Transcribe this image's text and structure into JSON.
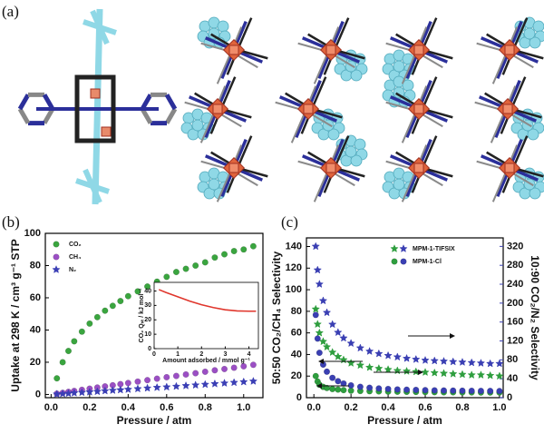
{
  "panels": [
    "(a)",
    "(b)",
    "(c)"
  ],
  "chart_data": [
    {
      "type": "scatter",
      "xlabel": "Pressure / atm",
      "ylabel": "Uptake at 298 K / cm³ g⁻¹ STP",
      "xlim": [
        -0.03,
        1.1
      ],
      "ylim": [
        -2,
        100
      ],
      "xticks": [
        {
          "value": 0,
          "label": "0.0"
        },
        0.2,
        0.4,
        0.6,
        0.8,
        {
          "value": 1,
          "label": "1.0"
        }
      ],
      "yticks": [
        0,
        20,
        40,
        60,
        80,
        100
      ],
      "legend": "upper left",
      "x": [
        0.03,
        0.06,
        0.09,
        0.12,
        0.16,
        0.2,
        0.24,
        0.28,
        0.32,
        0.36,
        0.4,
        0.45,
        0.5,
        0.55,
        0.6,
        0.65,
        0.7,
        0.75,
        0.8,
        0.85,
        0.9,
        0.95,
        1.0,
        1.05
      ],
      "series": [
        {
          "name": "CO₂",
          "color": "#3aa53f",
          "marker": "circle",
          "values": [
            10,
            20,
            27,
            33,
            39,
            44,
            48,
            52,
            55,
            58,
            61,
            64,
            67,
            70,
            73,
            76,
            78,
            80,
            82,
            85,
            87,
            89,
            90,
            92
          ]
        },
        {
          "name": "CH₄",
          "color": "#9b4fc4",
          "marker": "circle",
          "values": [
            0.5,
            1,
            1.6,
            2.2,
            2.9,
            3.6,
            4.3,
            5,
            5.7,
            6.4,
            7.1,
            8,
            8.9,
            9.8,
            10.7,
            11.5,
            12.4,
            13.2,
            14.1,
            15,
            15.8,
            16.6,
            17.5,
            18.4
          ]
        },
        {
          "name": "N₂",
          "color": "#3b3fb5",
          "marker": "star",
          "values": [
            0.2,
            0.4,
            0.6,
            0.9,
            1.2,
            1.5,
            1.8,
            2.2,
            2.5,
            2.8,
            3.1,
            3.5,
            3.9,
            4.3,
            4.6,
            5,
            5.4,
            5.8,
            6.2,
            6.6,
            7,
            7.4,
            7.8,
            8.2
          ]
        }
      ]
    },
    {
      "type": "line",
      "xlabel": "Amount adsorbed / mmol g⁻¹",
      "ylabel": "CO₂ Qₛₜ / kJ mol⁻¹",
      "xlim": [
        0,
        4.4
      ],
      "ylim": [
        0,
        46
      ],
      "xticks": [
        0,
        1,
        2,
        3,
        4
      ],
      "yticks": [
        0,
        10,
        20,
        30,
        40
      ],
      "x": [
        0.2,
        0.5,
        1,
        1.5,
        2,
        2.5,
        3,
        3.5,
        4,
        4.3
      ],
      "series": [
        {
          "color": "#e0362c",
          "values": [
            41,
            39,
            36,
            33,
            30.5,
            28.5,
            27,
            26.2,
            26,
            26
          ]
        }
      ]
    },
    {
      "type": "scatter",
      "xlabel": "Pressure / atm",
      "ylabel": "50:50 CO₂/CH₄ Selectivity",
      "y2label": "10:90 CO₂/N₂ Selectivity",
      "xlim": [
        -0.04,
        1.02
      ],
      "ylim": [
        0,
        148
      ],
      "y2lim": [
        0,
        338
      ],
      "xticks": [
        {
          "value": 0,
          "label": "0.0"
        },
        0.2,
        0.4,
        0.6,
        0.8,
        {
          "value": 1,
          "label": "1.0"
        }
      ],
      "yticks": [
        0,
        20,
        40,
        60,
        80,
        100,
        120,
        140
      ],
      "y2ticks": [
        0,
        40,
        80,
        120,
        160,
        200,
        240,
        280,
        320
      ],
      "legend": "upper right",
      "x": [
        0.01,
        0.02,
        0.03,
        0.05,
        0.07,
        0.1,
        0.13,
        0.16,
        0.2,
        0.25,
        0.3,
        0.35,
        0.4,
        0.45,
        0.5,
        0.55,
        0.6,
        0.65,
        0.7,
        0.75,
        0.8,
        0.85,
        0.9,
        0.95,
        1.0
      ],
      "series": [
        {
          "name": "MPM-1-TIFSIX",
          "color": "#2e9e3e",
          "marker": "star",
          "values": [
            82,
            68,
            60,
            52,
            47,
            42,
            38,
            35,
            32,
            30,
            28,
            27,
            26,
            25,
            24.5,
            24,
            23.5,
            23,
            22.5,
            22,
            21.5,
            21,
            21,
            20.5,
            20
          ]
        },
        {
          "name": "MPM-1-Cl",
          "color": "#2e9e3e",
          "marker": "circle",
          "values": [
            20,
            15,
            12,
            10,
            9,
            8,
            7.5,
            7,
            6.5,
            6.2,
            6,
            5.8,
            5.6,
            5.5,
            5.4,
            5.3,
            5.2,
            5.1,
            5,
            5,
            4.9,
            4.9,
            4.8,
            4.8,
            4.8
          ]
        },
        {
          "color": "#3a3fb3",
          "marker": "star",
          "axis": "y2",
          "values": [
            320,
            270,
            240,
            205,
            180,
            155,
            138,
            126,
            115,
            105,
            98,
            93,
            89,
            86,
            83,
            81,
            79,
            78,
            77,
            76,
            75,
            74,
            73,
            72,
            72
          ]
        },
        {
          "color": "#3a3fb3",
          "marker": "circle",
          "axis": "y2",
          "values": [
            175,
            125,
            95,
            70,
            55,
            42,
            35,
            30,
            26,
            23,
            21,
            19.5,
            18.5,
            17.5,
            17,
            16.5,
            16,
            15.5,
            15.2,
            15,
            14.8,
            14.6,
            14.4,
            14.2,
            14
          ]
        }
      ]
    }
  ]
}
